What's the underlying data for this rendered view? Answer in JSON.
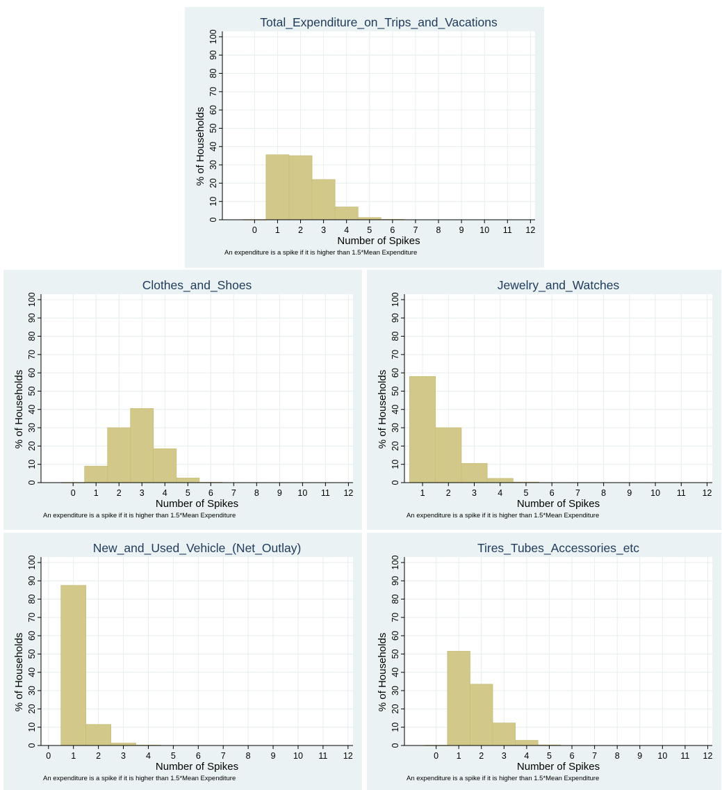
{
  "colors": {
    "panel_background": "#eaf2f3",
    "plot_background": "#ffffff",
    "bar_fill": "#d2c889",
    "bar_stroke": "#c8bd78",
    "grid": "#e6eeee",
    "title": "#1f3a5a",
    "axis": "#000000"
  },
  "chart_data": [
    {
      "type": "bar",
      "title": "Total_Expenditure_on_Trips_and_Vacations",
      "xlabel": "Number of Spikes",
      "ylabel": "% of Households",
      "note": "An expenditure is a spike if it is higher than 1.5*Mean Expenditure",
      "xlim": [
        -1.4,
        12.2
      ],
      "ylim": [
        0,
        103
      ],
      "xticks": [
        0,
        1,
        2,
        3,
        4,
        5,
        6,
        7,
        8,
        9,
        10,
        11,
        12
      ],
      "yticks": [
        0,
        10,
        20,
        30,
        40,
        50,
        60,
        70,
        80,
        90,
        100
      ],
      "grid": true,
      "legend": "none",
      "bars": [
        {
          "x": 0,
          "value": 0.1
        },
        {
          "x": 1,
          "value": 35.5
        },
        {
          "x": 2,
          "value": 35.0
        },
        {
          "x": 3,
          "value": 22.0
        },
        {
          "x": 4,
          "value": 7.0
        },
        {
          "x": 5,
          "value": 1.2
        },
        {
          "x": 6,
          "value": 0.2
        }
      ]
    },
    {
      "type": "bar",
      "title": "Clothes_and_Shoes",
      "xlabel": "Number of Spikes",
      "ylabel": "% of Households",
      "note": "An expenditure is a spike if it is higher than 1.5*Mean Expenditure",
      "xlim": [
        -1.4,
        12.2
      ],
      "ylim": [
        0,
        103
      ],
      "xticks": [
        0,
        1,
        2,
        3,
        4,
        5,
        6,
        7,
        8,
        9,
        10,
        11,
        12
      ],
      "yticks": [
        0,
        10,
        20,
        30,
        40,
        50,
        60,
        70,
        80,
        90,
        100
      ],
      "grid": true,
      "legend": "none",
      "bars": [
        {
          "x": 0,
          "value": 0.1
        },
        {
          "x": 1,
          "value": 9.0
        },
        {
          "x": 2,
          "value": 30.0
        },
        {
          "x": 3,
          "value": 40.5
        },
        {
          "x": 4,
          "value": 18.5
        },
        {
          "x": 5,
          "value": 2.5
        },
        {
          "x": 6,
          "value": 0.2
        }
      ]
    },
    {
      "type": "bar",
      "title": "Jewelry_and_Watches",
      "xlabel": "Number of Spikes",
      "ylabel": "% of Households",
      "note": "An expenditure is a spike if it is higher than 1.5*Mean Expenditure",
      "xlim": [
        0.3,
        12.2
      ],
      "ylim": [
        0,
        103
      ],
      "xticks": [
        1,
        2,
        3,
        4,
        5,
        6,
        7,
        8,
        9,
        10,
        11,
        12
      ],
      "yticks": [
        0,
        10,
        20,
        30,
        40,
        50,
        60,
        70,
        80,
        90,
        100
      ],
      "grid": true,
      "legend": "none",
      "bars": [
        {
          "x": 1,
          "value": 58.0
        },
        {
          "x": 2,
          "value": 30.0
        },
        {
          "x": 3,
          "value": 10.5
        },
        {
          "x": 4,
          "value": 2.3
        },
        {
          "x": 5,
          "value": 0.3
        }
      ]
    },
    {
      "type": "bar",
      "title": "New_and_Used_Vehicle_(Net_Outlay)",
      "xlabel": "Number of Spikes",
      "ylabel": "% of Households",
      "note": "An expenditure is a spike if it is higher than 1.5*Mean Expenditure",
      "xlim": [
        -0.3,
        12.2
      ],
      "ylim": [
        0,
        103
      ],
      "xticks": [
        0,
        1,
        2,
        3,
        4,
        5,
        6,
        7,
        8,
        9,
        10,
        11,
        12
      ],
      "yticks": [
        0,
        10,
        20,
        30,
        40,
        50,
        60,
        70,
        80,
        90,
        100
      ],
      "grid": true,
      "legend": "none",
      "bars": [
        {
          "x": 1,
          "value": 87.5
        },
        {
          "x": 2,
          "value": 11.5
        },
        {
          "x": 3,
          "value": 1.3
        },
        {
          "x": 4,
          "value": 0.2
        }
      ]
    },
    {
      "type": "bar",
      "title": "Tires_Tubes_Accessories_etc",
      "xlabel": "Number of Spikes",
      "ylabel": "% of Households",
      "note": "An expenditure is a spike if it is higher than 1.5*Mean Expenditure",
      "xlim": [
        -1.4,
        12.2
      ],
      "ylim": [
        0,
        103
      ],
      "xticks": [
        0,
        1,
        2,
        3,
        4,
        5,
        6,
        7,
        8,
        9,
        10,
        11,
        12
      ],
      "yticks": [
        0,
        10,
        20,
        30,
        40,
        50,
        60,
        70,
        80,
        90,
        100
      ],
      "grid": true,
      "legend": "none",
      "bars": [
        {
          "x": 0,
          "value": 0.1
        },
        {
          "x": 1,
          "value": 51.5
        },
        {
          "x": 2,
          "value": 33.5
        },
        {
          "x": 3,
          "value": 12.3
        },
        {
          "x": 4,
          "value": 2.8
        },
        {
          "x": 5,
          "value": 0.3
        }
      ]
    }
  ]
}
